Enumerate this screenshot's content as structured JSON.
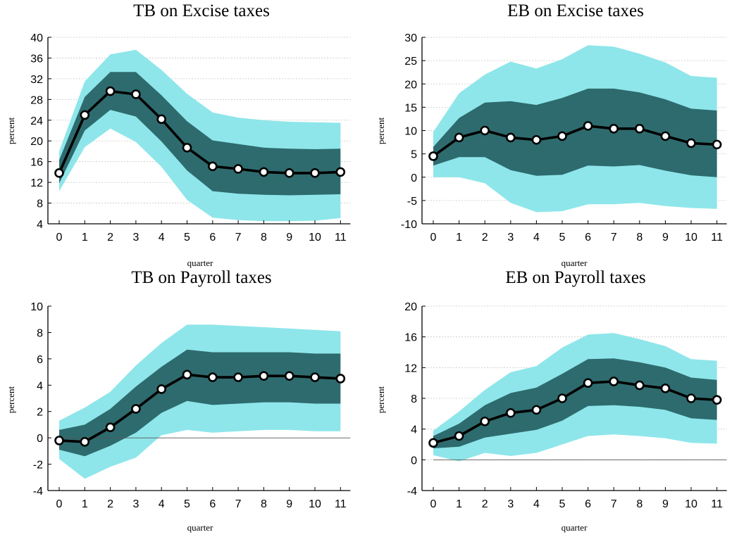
{
  "colors": {
    "outer_band": "#8ee6ea",
    "inner_band": "#2e6b6e",
    "line": "#000000",
    "marker_fill": "#ffffff",
    "gridline": "#c8c8c8",
    "zero_line": "#555555"
  },
  "chart_data": [
    {
      "type": "line",
      "title": "TB on Excise taxes",
      "xlabel": "quarter",
      "ylabel": "percent",
      "x": [
        0,
        1,
        2,
        3,
        4,
        5,
        6,
        7,
        8,
        9,
        10,
        11
      ],
      "ylim": [
        4,
        40
      ],
      "yticks": [
        4,
        8,
        12,
        16,
        20,
        24,
        28,
        32,
        36,
        40
      ],
      "ytick_labels": [
        "4",
        "8",
        "12",
        "16",
        "20",
        "24",
        "28",
        "32",
        "36",
        "40"
      ],
      "grid": true,
      "zero_line": false,
      "series": [
        {
          "values": [
            13.8,
            25.0,
            29.6,
            29.0,
            24.2,
            18.7,
            15.1,
            14.6,
            14.0,
            13.8,
            13.8,
            14.0
          ],
          "band_outer_upper": [
            18.0,
            31.5,
            36.7,
            37.6,
            33.7,
            29.1,
            25.5,
            24.5,
            24.0,
            23.7,
            23.6,
            23.5
          ],
          "band_outer_lower": [
            10.3,
            18.8,
            22.4,
            19.8,
            15.0,
            8.6,
            5.2,
            4.7,
            4.5,
            4.5,
            4.6,
            5.1
          ],
          "band_inner_upper": [
            16.3,
            28.5,
            33.3,
            33.3,
            28.8,
            23.8,
            20.1,
            19.4,
            18.7,
            18.5,
            18.4,
            18.5
          ],
          "band_inner_lower": [
            11.8,
            22.0,
            26.0,
            24.7,
            19.9,
            14.3,
            10.3,
            9.8,
            9.6,
            9.5,
            9.6,
            9.7
          ]
        }
      ]
    },
    {
      "type": "line",
      "title": "EB on Excise taxes",
      "xlabel": "quarter",
      "ylabel": "percent",
      "x": [
        0,
        1,
        2,
        3,
        4,
        5,
        6,
        7,
        8,
        9,
        10,
        11
      ],
      "ylim": [
        -10,
        30
      ],
      "yticks": [
        -10,
        -5,
        0,
        5,
        10,
        15,
        20,
        25,
        30
      ],
      "ytick_labels": [
        "-10",
        "-5",
        "0",
        "5",
        "10",
        "15",
        "20",
        "25",
        "30"
      ],
      "grid": true,
      "zero_line": false,
      "series": [
        {
          "values": [
            4.5,
            8.5,
            10.0,
            8.5,
            8.0,
            8.8,
            11.0,
            10.4,
            10.4,
            8.8,
            7.3,
            7.0
          ],
          "band_outer_upper": [
            9.7,
            18.0,
            22.0,
            24.8,
            23.3,
            25.3,
            28.3,
            28.0,
            26.5,
            24.6,
            21.7,
            21.3
          ],
          "band_outer_lower": [
            0.0,
            0.0,
            -1.3,
            -5.5,
            -7.5,
            -7.3,
            -5.8,
            -5.8,
            -5.5,
            -6.2,
            -6.6,
            -6.8
          ],
          "band_inner_upper": [
            6.5,
            12.7,
            16.0,
            16.3,
            15.5,
            17.0,
            19.0,
            19.0,
            18.2,
            16.7,
            14.7,
            14.3
          ],
          "band_inner_lower": [
            2.5,
            4.3,
            4.3,
            1.5,
            0.3,
            0.5,
            2.5,
            2.3,
            2.6,
            1.4,
            0.4,
            0.0
          ]
        }
      ]
    },
    {
      "type": "line",
      "title": "TB on Payroll taxes",
      "xlabel": "quarter",
      "ylabel": "percent",
      "x": [
        0,
        1,
        2,
        3,
        4,
        5,
        6,
        7,
        8,
        9,
        10,
        11
      ],
      "ylim": [
        -4,
        10
      ],
      "yticks": [
        -4,
        -2,
        0,
        2,
        4,
        6,
        8,
        10
      ],
      "ytick_labels": [
        "-4",
        "-2",
        "0",
        "2",
        "4",
        "6",
        "8",
        "10"
      ],
      "grid": false,
      "zero_line": true,
      "series": [
        {
          "values": [
            -0.2,
            -0.3,
            0.8,
            2.2,
            3.7,
            4.8,
            4.6,
            4.6,
            4.7,
            4.7,
            4.6,
            4.5
          ],
          "band_outer_upper": [
            1.3,
            2.3,
            3.5,
            5.5,
            7.2,
            8.6,
            8.6,
            8.5,
            8.4,
            8.3,
            8.2,
            8.1
          ],
          "band_outer_lower": [
            -1.6,
            -3.1,
            -2.2,
            -1.5,
            0.2,
            0.6,
            0.4,
            0.5,
            0.6,
            0.6,
            0.5,
            0.5
          ],
          "band_inner_upper": [
            0.6,
            1.0,
            2.2,
            3.9,
            5.4,
            6.7,
            6.5,
            6.5,
            6.5,
            6.5,
            6.4,
            6.4
          ],
          "band_inner_lower": [
            -0.9,
            -1.4,
            -0.6,
            0.4,
            1.9,
            2.8,
            2.5,
            2.6,
            2.7,
            2.7,
            2.6,
            2.6
          ]
        }
      ]
    },
    {
      "type": "line",
      "title": "EB on Payroll taxes",
      "xlabel": "quarter",
      "ylabel": "percent",
      "x": [
        0,
        1,
        2,
        3,
        4,
        5,
        6,
        7,
        8,
        9,
        10,
        11
      ],
      "ylim": [
        -4,
        20
      ],
      "yticks": [
        -4,
        0,
        4,
        8,
        12,
        16,
        20
      ],
      "ytick_labels": [
        "-4",
        "0",
        "4",
        "8",
        "12",
        "16",
        "20"
      ],
      "grid": true,
      "zero_line": true,
      "series": [
        {
          "values": [
            2.2,
            3.1,
            5.0,
            6.1,
            6.5,
            8.0,
            10.0,
            10.2,
            9.7,
            9.3,
            8.0,
            7.8
          ],
          "band_outer_upper": [
            3.8,
            6.3,
            9.1,
            11.4,
            12.2,
            14.6,
            16.3,
            16.5,
            15.7,
            14.8,
            13.1,
            12.9
          ],
          "band_outer_lower": [
            0.6,
            -0.2,
            0.9,
            0.5,
            0.9,
            2.0,
            3.1,
            3.3,
            3.1,
            2.8,
            2.2,
            2.1
          ],
          "band_inner_upper": [
            3.1,
            4.7,
            7.1,
            8.7,
            9.4,
            11.2,
            13.1,
            13.2,
            12.7,
            12.0,
            10.7,
            10.4
          ],
          "band_inner_lower": [
            1.5,
            1.7,
            2.9,
            3.4,
            3.9,
            5.1,
            7.0,
            7.1,
            6.9,
            6.5,
            5.4,
            5.2
          ]
        }
      ]
    }
  ]
}
